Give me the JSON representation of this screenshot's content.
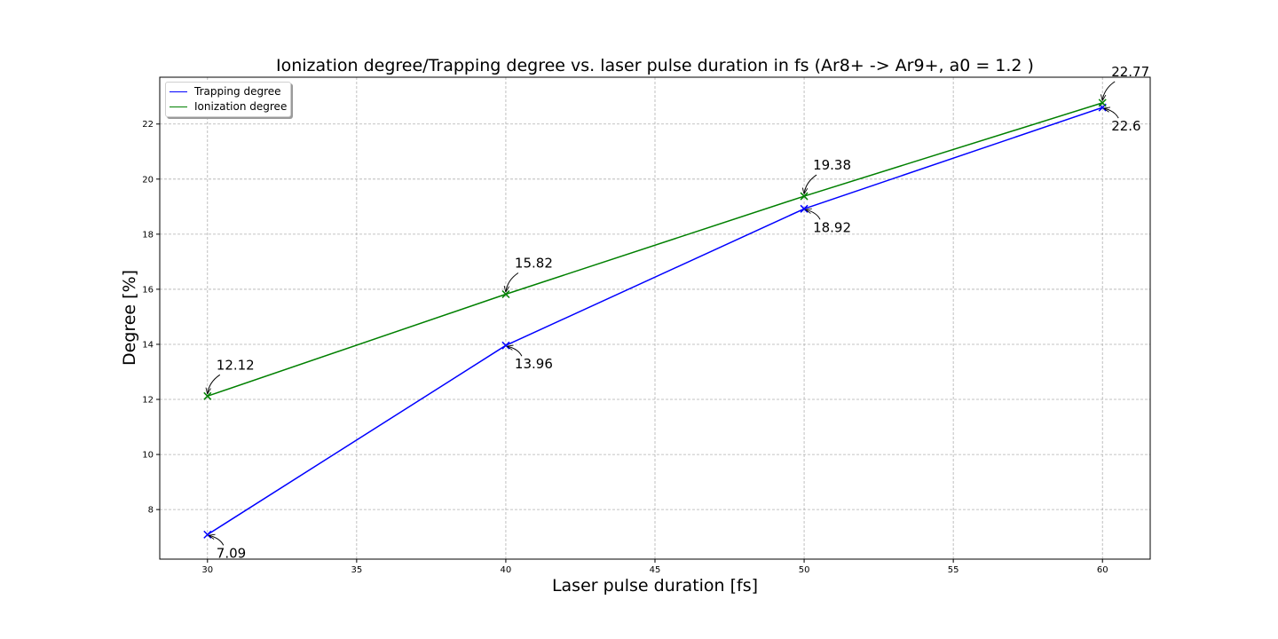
{
  "chart_data": {
    "type": "line",
    "title": "Ionization degree/Trapping degree vs. laser pulse duration in fs (Ar8+ -> Ar9+, a0 = 1.2 )",
    "xlabel": "Laser pulse duration [fs]",
    "ylabel": "Degree [%]",
    "x": [
      30,
      40,
      50,
      60
    ],
    "xlim": [
      28.4,
      61.6
    ],
    "ylim": [
      6.2,
      23.7
    ],
    "xticks": [
      "30",
      "35",
      "40",
      "45",
      "50",
      "55",
      "60"
    ],
    "yticks": [
      "8",
      "10",
      "12",
      "14",
      "16",
      "18",
      "20",
      "22"
    ],
    "grid": true,
    "legend_position": "upper-left",
    "marker": "x",
    "series": [
      {
        "name": "Trapping degree",
        "color": "#0000ff",
        "values": [
          7.09,
          13.96,
          18.92,
          22.6
        ],
        "labels": [
          "7.09",
          "13.96",
          "18.92",
          "22.6"
        ]
      },
      {
        "name": "Ionization degree",
        "color": "#008000",
        "values": [
          12.12,
          15.82,
          19.38,
          22.77
        ],
        "labels": [
          "12.12",
          "15.82",
          "19.38",
          "22.77"
        ]
      }
    ]
  }
}
